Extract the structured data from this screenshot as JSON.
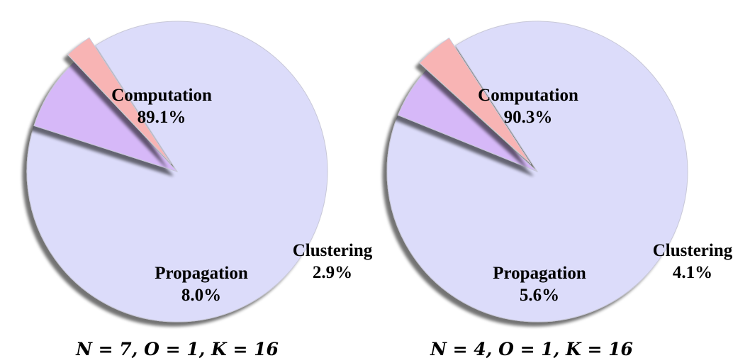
{
  "chart_data": [
    {
      "type": "pie",
      "caption": "N = 7, O = 1, K = 16",
      "slices": [
        {
          "label": "Computation",
          "value": 89.1,
          "display": "89.1%",
          "color": "#dcdcfa"
        },
        {
          "label": "Propagation",
          "value": 8.0,
          "display": "8.0%",
          "color": "#d6b8f8"
        },
        {
          "label": "Clustering",
          "value": 2.9,
          "display": "2.9%",
          "color": "#f8b4b4",
          "exploded": true
        }
      ]
    },
    {
      "type": "pie",
      "caption": "N = 4, O = 1, K = 16",
      "slices": [
        {
          "label": "Computation",
          "value": 90.3,
          "display": "90.3%",
          "color": "#dcdcfa"
        },
        {
          "label": "Propagation",
          "value": 5.6,
          "display": "5.6%",
          "color": "#d6b8f8"
        },
        {
          "label": "Clustering",
          "value": 4.1,
          "display": "4.1%",
          "color": "#f8b4b4",
          "exploded": true
        }
      ]
    }
  ]
}
